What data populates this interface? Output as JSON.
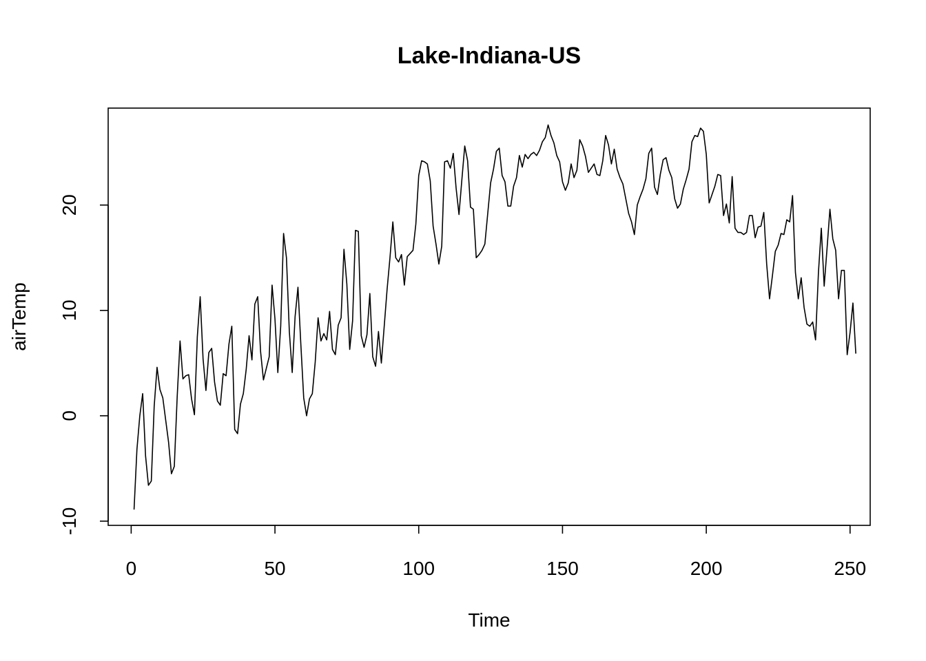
{
  "chart_data": {
    "type": "line",
    "title": "Lake-Indiana-US",
    "xlabel": "Time",
    "ylabel": "airTemp",
    "xlim": [
      -8,
      257
    ],
    "ylim": [
      -10.4,
      29.2
    ],
    "x_ticks": [
      0,
      50,
      100,
      150,
      200,
      250
    ],
    "y_ticks": [
      -10,
      0,
      10,
      20
    ],
    "x_tick_labels": [
      "0",
      "50",
      "100",
      "150",
      "200",
      "250"
    ],
    "y_tick_labels": [
      "-10",
      "0",
      "10",
      "20"
    ],
    "grid": false,
    "legend": "none",
    "line_color": "#000000",
    "series": [
      {
        "x_start": 1,
        "values": [
          -8.9,
          -3.2,
          0.0,
          2.1,
          -3.8,
          -6.6,
          -6.2,
          0.9,
          4.6,
          2.5,
          1.7,
          -0.4,
          -2.5,
          -5.5,
          -4.8,
          1.8,
          7.1,
          3.5,
          3.8,
          3.9,
          1.6,
          0.1,
          7.5,
          11.3,
          5.4,
          2.4,
          6.0,
          6.4,
          3.2,
          1.4,
          1.0,
          4.0,
          3.8,
          6.8,
          8.5,
          -1.3,
          -1.7,
          1.1,
          2.1,
          4.4,
          7.6,
          5.3,
          10.6,
          11.3,
          6.1,
          3.4,
          4.5,
          5.6,
          12.4,
          9.2,
          4.1,
          8.5,
          17.3,
          15.0,
          8.0,
          4.1,
          9.4,
          12.2,
          6.8,
          1.7,
          0.0,
          1.6,
          2.1,
          5.1,
          9.3,
          7.1,
          7.8,
          7.2,
          9.9,
          6.3,
          5.8,
          8.6,
          9.3,
          15.8,
          12.5,
          6.3,
          9.0,
          17.6,
          17.5,
          7.6,
          6.5,
          7.7,
          11.6,
          5.6,
          4.7,
          8.0,
          5.0,
          8.5,
          12.0,
          15.0,
          18.4,
          15.0,
          14.6,
          15.3,
          12.4,
          15.1,
          15.4,
          15.7,
          18.2,
          22.8,
          24.2,
          24.1,
          23.9,
          22.3,
          18.0,
          16.3,
          14.4,
          16.1,
          24.1,
          24.2,
          23.5,
          24.9,
          21.6,
          19.1,
          22.4,
          25.6,
          24.2,
          19.8,
          19.6,
          15.0,
          15.3,
          15.7,
          16.3,
          19.2,
          22.1,
          23.4,
          25.1,
          25.4,
          22.8,
          22.2,
          19.9,
          19.9,
          21.8,
          22.6,
          24.7,
          23.6,
          24.8,
          24.4,
          24.8,
          25.0,
          24.7,
          25.2,
          26.0,
          26.4,
          27.6,
          26.6,
          25.9,
          24.7,
          24.1,
          22.2,
          21.4,
          22.1,
          23.9,
          22.6,
          23.3,
          26.2,
          25.6,
          24.6,
          23.1,
          23.5,
          23.9,
          22.9,
          22.8,
          24.2,
          26.6,
          25.7,
          23.9,
          25.3,
          23.4,
          22.6,
          22.0,
          20.6,
          19.2,
          18.4,
          17.2,
          20.0,
          20.8,
          21.5,
          22.5,
          24.9,
          25.4,
          21.7,
          21.0,
          22.9,
          24.3,
          24.5,
          23.3,
          22.6,
          20.6,
          19.7,
          20.1,
          21.5,
          22.4,
          23.4,
          26.0,
          26.6,
          26.5,
          27.3,
          27.0,
          24.8,
          20.2,
          21.0,
          21.8,
          22.9,
          22.8,
          19.0,
          20.1,
          18.3,
          22.7,
          17.8,
          17.4,
          17.4,
          17.2,
          17.4,
          19.0,
          19.0,
          16.9,
          17.9,
          18.0,
          19.3,
          14.4,
          11.1,
          13.3,
          15.6,
          16.2,
          17.3,
          17.2,
          18.6,
          18.4,
          20.9,
          13.6,
          11.1,
          13.1,
          10.3,
          8.7,
          8.5,
          8.9,
          7.2,
          13.6,
          17.8,
          12.3,
          15.9,
          19.6,
          16.8,
          15.7,
          11.1,
          13.8,
          13.8,
          5.8,
          7.9,
          10.7,
          5.9
        ]
      }
    ]
  }
}
